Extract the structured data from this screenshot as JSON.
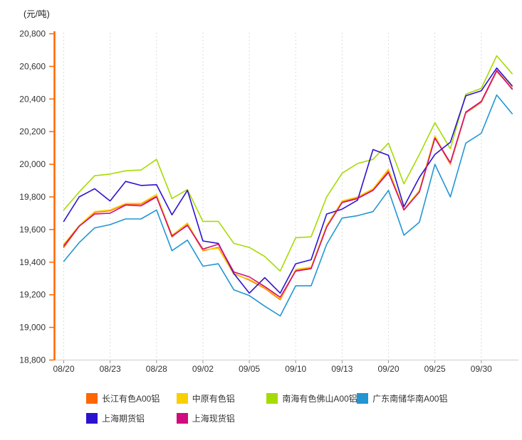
{
  "page": {
    "background": "#ffffff"
  },
  "chart_data": {
    "type": "line",
    "unit_label": "(元/吨)",
    "x_tick_labels": [
      "08/20",
      "08/23",
      "08/28",
      "09/02",
      "09/05",
      "09/10",
      "09/13",
      "09/20",
      "09/25",
      "09/30"
    ],
    "x_tick_indices": [
      0,
      3,
      6,
      9,
      12,
      15,
      18,
      21,
      24,
      27
    ],
    "n_points": 30,
    "ylim": [
      18800,
      20800
    ],
    "y_step": 200,
    "grid": "vertical-dashed",
    "legend_position": "bottom",
    "colors": {
      "y_axis": "#FF6600",
      "x_axis_line": "#cccccc",
      "x_tick": "#999999",
      "gridline": "#dcdcdc",
      "tick_text": "#333333",
      "unit_text": "#222222"
    },
    "series": [
      {
        "name": "长江有色A00铝",
        "color": "#FF6600",
        "values": [
          19490,
          19620,
          19705,
          19715,
          19755,
          19755,
          19805,
          19555,
          19630,
          19470,
          19490,
          19330,
          19290,
          19240,
          19170,
          19350,
          19365,
          19620,
          19770,
          19795,
          19845,
          19960,
          19720,
          19835,
          20165,
          20000,
          20315,
          20380,
          20570,
          20465
        ]
      },
      {
        "name": "中原有色铝",
        "color": "#F8D000",
        "values": [
          19510,
          19625,
          19710,
          19720,
          19760,
          19760,
          19815,
          19565,
          19640,
          19475,
          19485,
          19325,
          19295,
          19245,
          19175,
          19355,
          19370,
          19625,
          19775,
          19800,
          19850,
          19970,
          19725,
          19840,
          20175,
          20005,
          20320,
          20385,
          20575,
          20470
        ]
      },
      {
        "name": "南海有色佛山A00铝",
        "color": "#A6DB00",
        "values": [
          19720,
          19830,
          19930,
          19940,
          19960,
          19965,
          20030,
          19790,
          19845,
          19650,
          19650,
          19515,
          19490,
          19435,
          19345,
          19550,
          19555,
          19800,
          19945,
          20005,
          20030,
          20130,
          19880,
          20060,
          20255,
          20095,
          20430,
          20465,
          20665,
          20555
        ]
      },
      {
        "name": "广东南储华南A00铝",
        "color": "#2196D3",
        "values": [
          19405,
          19520,
          19610,
          19630,
          19665,
          19665,
          19720,
          19470,
          19535,
          19375,
          19390,
          19230,
          19195,
          19130,
          19070,
          19255,
          19255,
          19510,
          19670,
          19685,
          19710,
          19840,
          19565,
          19645,
          20000,
          19800,
          20130,
          20190,
          20425,
          20310
        ]
      },
      {
        "name": "上海期货铝",
        "color": "#2C12D0",
        "values": [
          19650,
          19800,
          19850,
          19775,
          19895,
          19870,
          19875,
          19690,
          19840,
          19530,
          19515,
          19330,
          19210,
          19305,
          19210,
          19390,
          19415,
          19695,
          19725,
          19780,
          20090,
          20055,
          19740,
          19920,
          20060,
          20135,
          20420,
          20450,
          20590,
          20480
        ]
      },
      {
        "name": "上海现货铝",
        "color": "#D00C7E",
        "values": [
          19500,
          19620,
          19695,
          19700,
          19750,
          19745,
          19800,
          19560,
          19625,
          19480,
          19510,
          19340,
          19310,
          19250,
          19185,
          19345,
          19360,
          19615,
          19765,
          19790,
          19840,
          19950,
          19720,
          19830,
          20160,
          20010,
          20320,
          20385,
          20575,
          20460
        ]
      }
    ]
  }
}
